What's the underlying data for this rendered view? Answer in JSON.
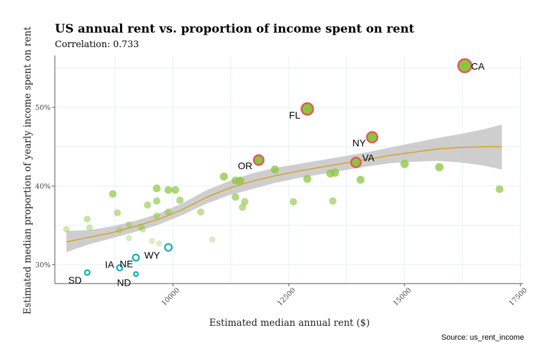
{
  "chart_data": {
    "type": "scatter",
    "title": "US annual rent vs. proportion of income spent on rent",
    "subtitle": "Correlation: 0.733",
    "xlabel": "Estimated median annual rent ($)",
    "ylabel": "Estimated median proportion of yearly income spent on rent",
    "caption": "Source: us_rent_income",
    "xlim": [
      7450,
      17550
    ],
    "ylim": [
      27.6,
      56.6
    ],
    "x_ticks": [
      {
        "value": 10000,
        "label": "10000"
      },
      {
        "value": 12500,
        "label": "12500"
      },
      {
        "value": 15000,
        "label": "15000"
      },
      {
        "value": 17500,
        "label": "17500"
      }
    ],
    "y_ticks": [
      {
        "value": 30,
        "label": "30%"
      },
      {
        "value": 40,
        "label": "40%"
      },
      {
        "value": 50,
        "label": "50%"
      }
    ],
    "grid": true,
    "colors": {
      "points": "#8bc53f",
      "highlight_outline": "#e8575a",
      "low_outline": "#1fb5b8",
      "smooth_line": "#d4a017",
      "confidence_band": "#bdbdbd"
    },
    "points": [
      {
        "x": 7700,
        "y": 34.5
      },
      {
        "x": 8150,
        "y": 35.8
      },
      {
        "x": 8200,
        "y": 34.7
      },
      {
        "x": 8700,
        "y": 39.0
      },
      {
        "x": 8800,
        "y": 36.6
      },
      {
        "x": 8850,
        "y": 34.4
      },
      {
        "x": 9050,
        "y": 35.1
      },
      {
        "x": 9050,
        "y": 33.4
      },
      {
        "x": 9300,
        "y": 34.8
      },
      {
        "x": 9350,
        "y": 34.5
      },
      {
        "x": 9450,
        "y": 37.6
      },
      {
        "x": 9550,
        "y": 33.0
      },
      {
        "x": 9650,
        "y": 39.7
      },
      {
        "x": 9650,
        "y": 38.1
      },
      {
        "x": 9650,
        "y": 36.2
      },
      {
        "x": 9700,
        "y": 32.7
      },
      {
        "x": 9900,
        "y": 39.5
      },
      {
        "x": 9900,
        "y": 36.7
      },
      {
        "x": 10050,
        "y": 39.5
      },
      {
        "x": 10150,
        "y": 38.2
      },
      {
        "x": 10600,
        "y": 36.7
      },
      {
        "x": 10850,
        "y": 33.2
      },
      {
        "x": 11100,
        "y": 41.2
      },
      {
        "x": 11350,
        "y": 38.6
      },
      {
        "x": 11350,
        "y": 40.7
      },
      {
        "x": 11450,
        "y": 40.7
      },
      {
        "x": 11500,
        "y": 37.3
      },
      {
        "x": 11550,
        "y": 38.0
      },
      {
        "x": 12200,
        "y": 42.1
      },
      {
        "x": 12600,
        "y": 38.0
      },
      {
        "x": 12900,
        "y": 40.9
      },
      {
        "x": 13400,
        "y": 41.6
      },
      {
        "x": 13450,
        "y": 38.1
      },
      {
        "x": 13500,
        "y": 41.7
      },
      {
        "x": 14050,
        "y": 40.8
      },
      {
        "x": 15000,
        "y": 42.8
      },
      {
        "x": 15750,
        "y": 42.4
      },
      {
        "x": 17050,
        "y": 39.6
      }
    ],
    "highlighted_high": [
      {
        "x": 16300,
        "y": 55.3,
        "label": "CA",
        "dx": 9,
        "dy": 6,
        "anchor": "start"
      },
      {
        "x": 12900,
        "y": 49.8,
        "label": "FL",
        "dx": -10,
        "dy": 14,
        "anchor": "end"
      },
      {
        "x": 14300,
        "y": 46.2,
        "label": "NY",
        "dx": -9,
        "dy": 13,
        "anchor": "end"
      },
      {
        "x": 11850,
        "y": 43.3,
        "label": "OR",
        "dx": -9,
        "dy": 13,
        "anchor": "end"
      },
      {
        "x": 13950,
        "y": 43.0,
        "label": "VA",
        "dx": 9,
        "dy": -2,
        "anchor": "start"
      }
    ],
    "highlighted_low": [
      {
        "x": 9900,
        "y": 32.2,
        "label": "WY",
        "dx": -12,
        "dy": 16,
        "anchor": "end",
        "r": 5
      },
      {
        "x": 9200,
        "y": 30.9,
        "label": "NE",
        "dx": -4,
        "dy": 14,
        "anchor": "end",
        "r": 4.5
      },
      {
        "x": 8850,
        "y": 29.6,
        "label": "IA",
        "dx": -8,
        "dy": 0,
        "anchor": "end",
        "r": 4
      },
      {
        "x": 8150,
        "y": 29.0,
        "label": "SD",
        "dx": -8,
        "dy": 16,
        "anchor": "end",
        "r": 3.5
      },
      {
        "x": 9200,
        "y": 28.8,
        "label": "ND",
        "dx": -7,
        "dy": 17,
        "anchor": "end",
        "r": 3
      }
    ],
    "smooth": [
      {
        "x": 7700,
        "y": 32.9,
        "lo": 31.6,
        "hi": 34.3
      },
      {
        "x": 8200,
        "y": 33.5,
        "lo": 32.6,
        "hi": 34.4
      },
      {
        "x": 8700,
        "y": 34.1,
        "lo": 33.4,
        "hi": 34.9
      },
      {
        "x": 9200,
        "y": 34.9,
        "lo": 34.2,
        "hi": 35.6
      },
      {
        "x": 9700,
        "y": 35.8,
        "lo": 35.1,
        "hi": 36.5
      },
      {
        "x": 10200,
        "y": 37.0,
        "lo": 36.3,
        "hi": 37.8
      },
      {
        "x": 10700,
        "y": 38.5,
        "lo": 37.7,
        "hi": 39.4
      },
      {
        "x": 11200,
        "y": 39.7,
        "lo": 38.8,
        "hi": 40.6
      },
      {
        "x": 11700,
        "y": 40.6,
        "lo": 39.6,
        "hi": 41.6
      },
      {
        "x": 12200,
        "y": 41.3,
        "lo": 40.4,
        "hi": 42.3
      },
      {
        "x": 12700,
        "y": 41.9,
        "lo": 41.0,
        "hi": 42.8
      },
      {
        "x": 13200,
        "y": 42.4,
        "lo": 41.5,
        "hi": 43.3
      },
      {
        "x": 13700,
        "y": 42.9,
        "lo": 42.0,
        "hi": 43.8
      },
      {
        "x": 14200,
        "y": 43.4,
        "lo": 42.5,
        "hi": 44.3
      },
      {
        "x": 14700,
        "y": 43.9,
        "lo": 42.9,
        "hi": 44.9
      },
      {
        "x": 15200,
        "y": 44.3,
        "lo": 43.1,
        "hi": 45.5
      },
      {
        "x": 15700,
        "y": 44.7,
        "lo": 43.2,
        "hi": 46.1
      },
      {
        "x": 16200,
        "y": 44.9,
        "lo": 43.0,
        "hi": 46.6
      },
      {
        "x": 16700,
        "y": 45.0,
        "lo": 42.6,
        "hi": 47.2
      },
      {
        "x": 17100,
        "y": 45.0,
        "lo": 42.1,
        "hi": 47.8
      }
    ]
  }
}
